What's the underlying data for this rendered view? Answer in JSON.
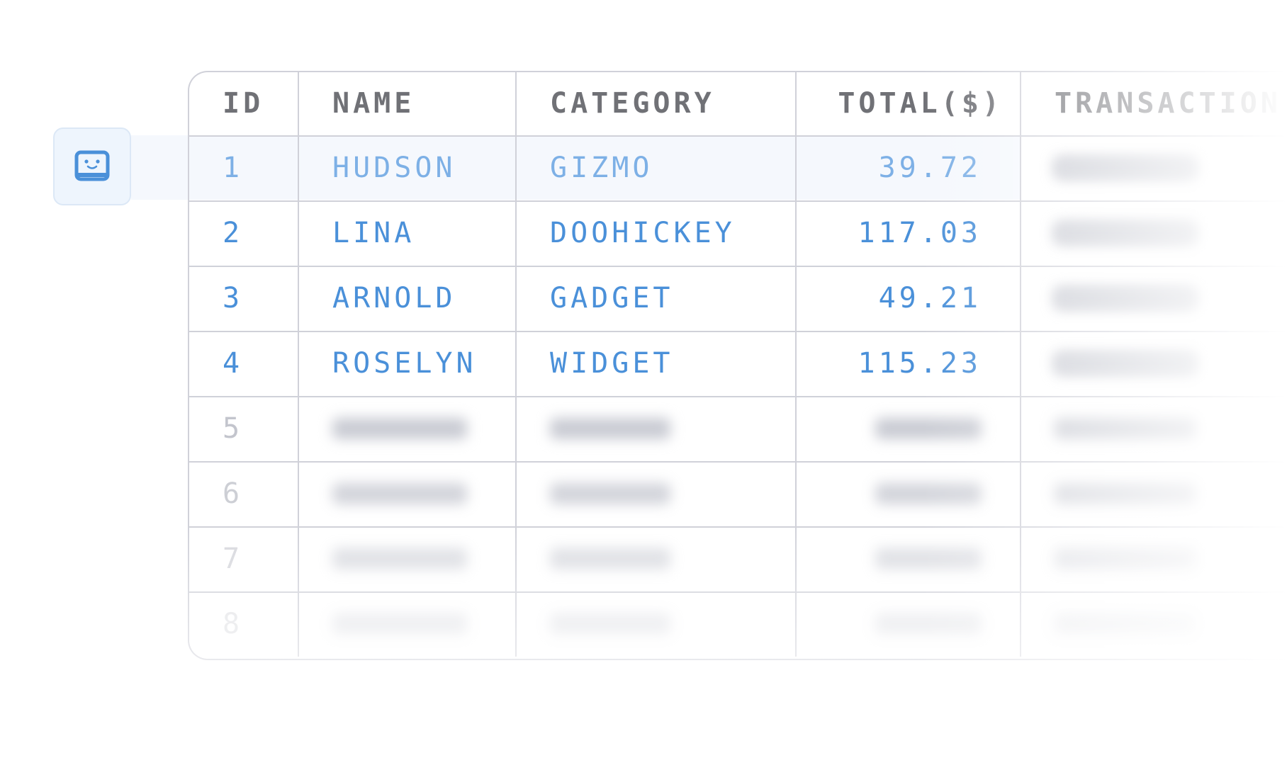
{
  "table": {
    "headers": [
      "ID",
      "NAME",
      "CATEGORY",
      "TOTAL($)",
      "TRANSACTION"
    ],
    "rows": [
      [
        "1",
        "HUDSON",
        "GIZMO",
        "39.72"
      ],
      [
        "2",
        "LINA",
        "DOOHICKEY",
        "117.03"
      ],
      [
        "3",
        "ARNOLD",
        "GADGET",
        "49.21"
      ],
      [
        "4",
        "ROSELYN",
        "WIDGET",
        "115.23"
      ],
      [
        "5"
      ],
      [
        "6"
      ],
      [
        "7"
      ],
      [
        "8"
      ]
    ]
  }
}
